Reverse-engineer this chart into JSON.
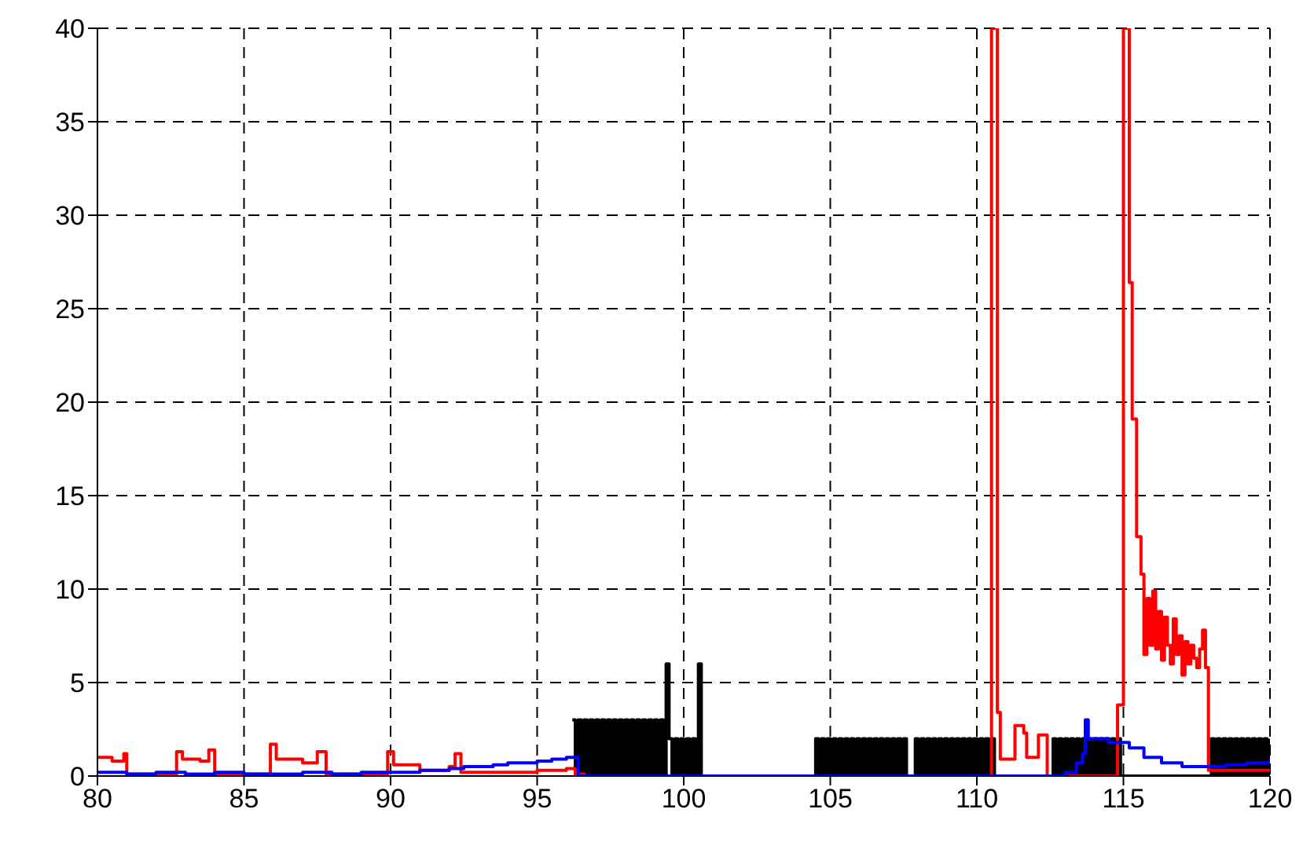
{
  "chart_data": {
    "type": "step",
    "xlim": [
      80,
      120
    ],
    "ylim": [
      0,
      40
    ],
    "xticks": [
      80,
      85,
      90,
      95,
      100,
      105,
      110,
      115,
      120
    ],
    "yticks": [
      0,
      5,
      10,
      15,
      20,
      25,
      30,
      35,
      40
    ],
    "grid": true,
    "marker": "none",
    "line_style": "solid",
    "series": [
      {
        "color": "#000000",
        "x": [
          96.2,
          96.3,
          96.4,
          96.5,
          96.6,
          96.7,
          96.8,
          96.9,
          97.0,
          97.1,
          97.2,
          97.3,
          97.4,
          97.5,
          97.6,
          97.7,
          97.8,
          97.9,
          98.0,
          98.1,
          98.2,
          98.3,
          98.4,
          98.5,
          98.6,
          98.7,
          98.8,
          98.9,
          99.0,
          99.1,
          99.2,
          99.3,
          99.4,
          99.5,
          99.6,
          99.7,
          99.8,
          99.9,
          100.0,
          100.1,
          100.2,
          100.3,
          100.4,
          100.5,
          100.6,
          104.5,
          104.6,
          104.7,
          104.8,
          104.9,
          105.0,
          105.1,
          105.2,
          105.3,
          105.4,
          105.5,
          105.6,
          105.7,
          105.8,
          105.9,
          106.0,
          106.1,
          106.2,
          106.3,
          106.4,
          106.5,
          106.6,
          106.7,
          106.8,
          106.9,
          107.0,
          107.1,
          107.2,
          107.3,
          107.4,
          107.5,
          107.6,
          107.9,
          108.0,
          108.1,
          108.2,
          108.3,
          108.4,
          108.5,
          108.6,
          108.7,
          108.8,
          108.9,
          109.0,
          109.1,
          109.2,
          109.3,
          109.4,
          109.5,
          109.6,
          109.7,
          109.8,
          109.9,
          110.0,
          110.1,
          110.2,
          110.3,
          110.4,
          110.5,
          110.6,
          112.6,
          112.7,
          112.8,
          112.9,
          113.0,
          113.1,
          113.2,
          113.3,
          113.4,
          113.5,
          113.6,
          113.7,
          113.8,
          113.9,
          114.0,
          114.1,
          114.2,
          114.3,
          114.4,
          114.5,
          114.6,
          114.7,
          114.8,
          114.9,
          118.0,
          118.1,
          118.2,
          118.3,
          118.4,
          118.5,
          118.6,
          118.7,
          118.8,
          118.9,
          119.0,
          119.1,
          119.2,
          119.3,
          119.4,
          119.5,
          119.6,
          119.7,
          119.8,
          119.9,
          120.0
        ],
        "values": [
          3,
          0,
          3,
          0,
          3,
          0,
          3,
          0,
          3,
          0,
          3,
          0,
          3,
          0,
          3,
          0,
          3,
          0,
          3,
          0,
          3,
          0,
          3,
          0,
          3,
          0,
          3,
          0,
          3,
          0,
          3,
          0,
          6,
          2,
          0,
          2,
          0,
          2,
          0,
          2,
          0,
          2,
          0,
          6,
          0,
          2,
          0,
          2,
          0,
          2,
          0,
          2,
          0,
          2,
          0,
          2,
          0,
          2,
          0,
          2,
          0,
          2,
          0,
          2,
          0,
          2,
          0,
          2,
          0,
          2,
          0,
          2,
          0,
          2,
          0,
          2,
          0,
          2,
          0,
          2,
          0,
          2,
          0,
          2,
          0,
          2,
          0,
          2,
          0,
          2,
          0,
          2,
          0,
          2,
          0,
          2,
          0,
          2,
          0,
          2,
          0,
          2,
          0,
          2,
          0,
          2,
          0,
          2,
          0,
          2,
          0,
          2,
          0,
          2,
          0,
          2,
          0,
          2,
          0,
          2,
          0,
          2,
          0,
          2,
          0,
          2,
          0,
          2,
          0,
          2,
          0,
          2,
          0,
          2,
          0,
          2,
          0,
          2,
          0,
          2,
          0,
          2,
          0,
          2,
          0,
          2,
          0,
          2,
          0,
          2
        ]
      },
      {
        "color": "#ff0000",
        "x": [
          80,
          80.5,
          80.9,
          81.0,
          82.7,
          82.9,
          83.5,
          83.8,
          84.0,
          85.9,
          86.1,
          87.0,
          87.5,
          87.8,
          89.9,
          90.1,
          91.0,
          92.0,
          92.2,
          92.4,
          94.0,
          95.0,
          96.0,
          96.3,
          96.6,
          110.5,
          110.7,
          110.8,
          111.3,
          111.6,
          111.7,
          112.1,
          112.4,
          114.8,
          115.0,
          115.2,
          115.3,
          115.45,
          115.6,
          115.7,
          115.8,
          115.9,
          116.0,
          116.1,
          116.2,
          116.3,
          116.4,
          116.5,
          116.6,
          116.7,
          116.8,
          116.9,
          117.0,
          117.1,
          117.2,
          117.3,
          117.4,
          117.5,
          117.6,
          117.7,
          117.8,
          117.9,
          120
        ],
        "values": [
          1.0,
          0.8,
          1.2,
          0.1,
          1.3,
          0.9,
          0.8,
          1.4,
          0.1,
          1.7,
          0.9,
          0.7,
          1.3,
          0.1,
          1.3,
          0.6,
          0.3,
          0.5,
          1.2,
          0.2,
          0.2,
          0.3,
          0.4,
          0.1,
          0,
          40,
          3.4,
          0.9,
          2.7,
          2.3,
          1.0,
          2.2,
          0,
          3.8,
          40,
          26.4,
          19.1,
          12.8,
          10.8,
          6.5,
          9.5,
          7.0,
          9.9,
          6.8,
          8.8,
          6.2,
          8.5,
          7.0,
          6.0,
          8.4,
          6.5,
          7.5,
          5.4,
          7.2,
          6.0,
          7.0,
          6.3,
          5.8,
          6.8,
          7.8,
          5.8,
          0.3,
          0.3
        ]
      },
      {
        "color": "#0000ff",
        "x": [
          80,
          81,
          82,
          83,
          84,
          85,
          86,
          87,
          88,
          89,
          90,
          91,
          92,
          92.5,
          93,
          93.5,
          94,
          94.5,
          95,
          95.5,
          96,
          96.3,
          96.4,
          112.5,
          113.0,
          113.4,
          113.6,
          113.7,
          113.8,
          114.5,
          115.2,
          115.7,
          116.3,
          117.0,
          117.9,
          118.5,
          119.2,
          120
        ],
        "values": [
          0.2,
          0.1,
          0.2,
          0.1,
          0.2,
          0.1,
          0.1,
          0.2,
          0.1,
          0.2,
          0.2,
          0.3,
          0.4,
          0.5,
          0.5,
          0.6,
          0.7,
          0.7,
          0.8,
          0.9,
          1.0,
          1.0,
          0,
          0,
          0.2,
          0.7,
          1.2,
          3.0,
          2.0,
          1.8,
          1.5,
          1.0,
          0.7,
          0.5,
          0.5,
          0.6,
          0.7,
          0.9
        ]
      }
    ]
  }
}
